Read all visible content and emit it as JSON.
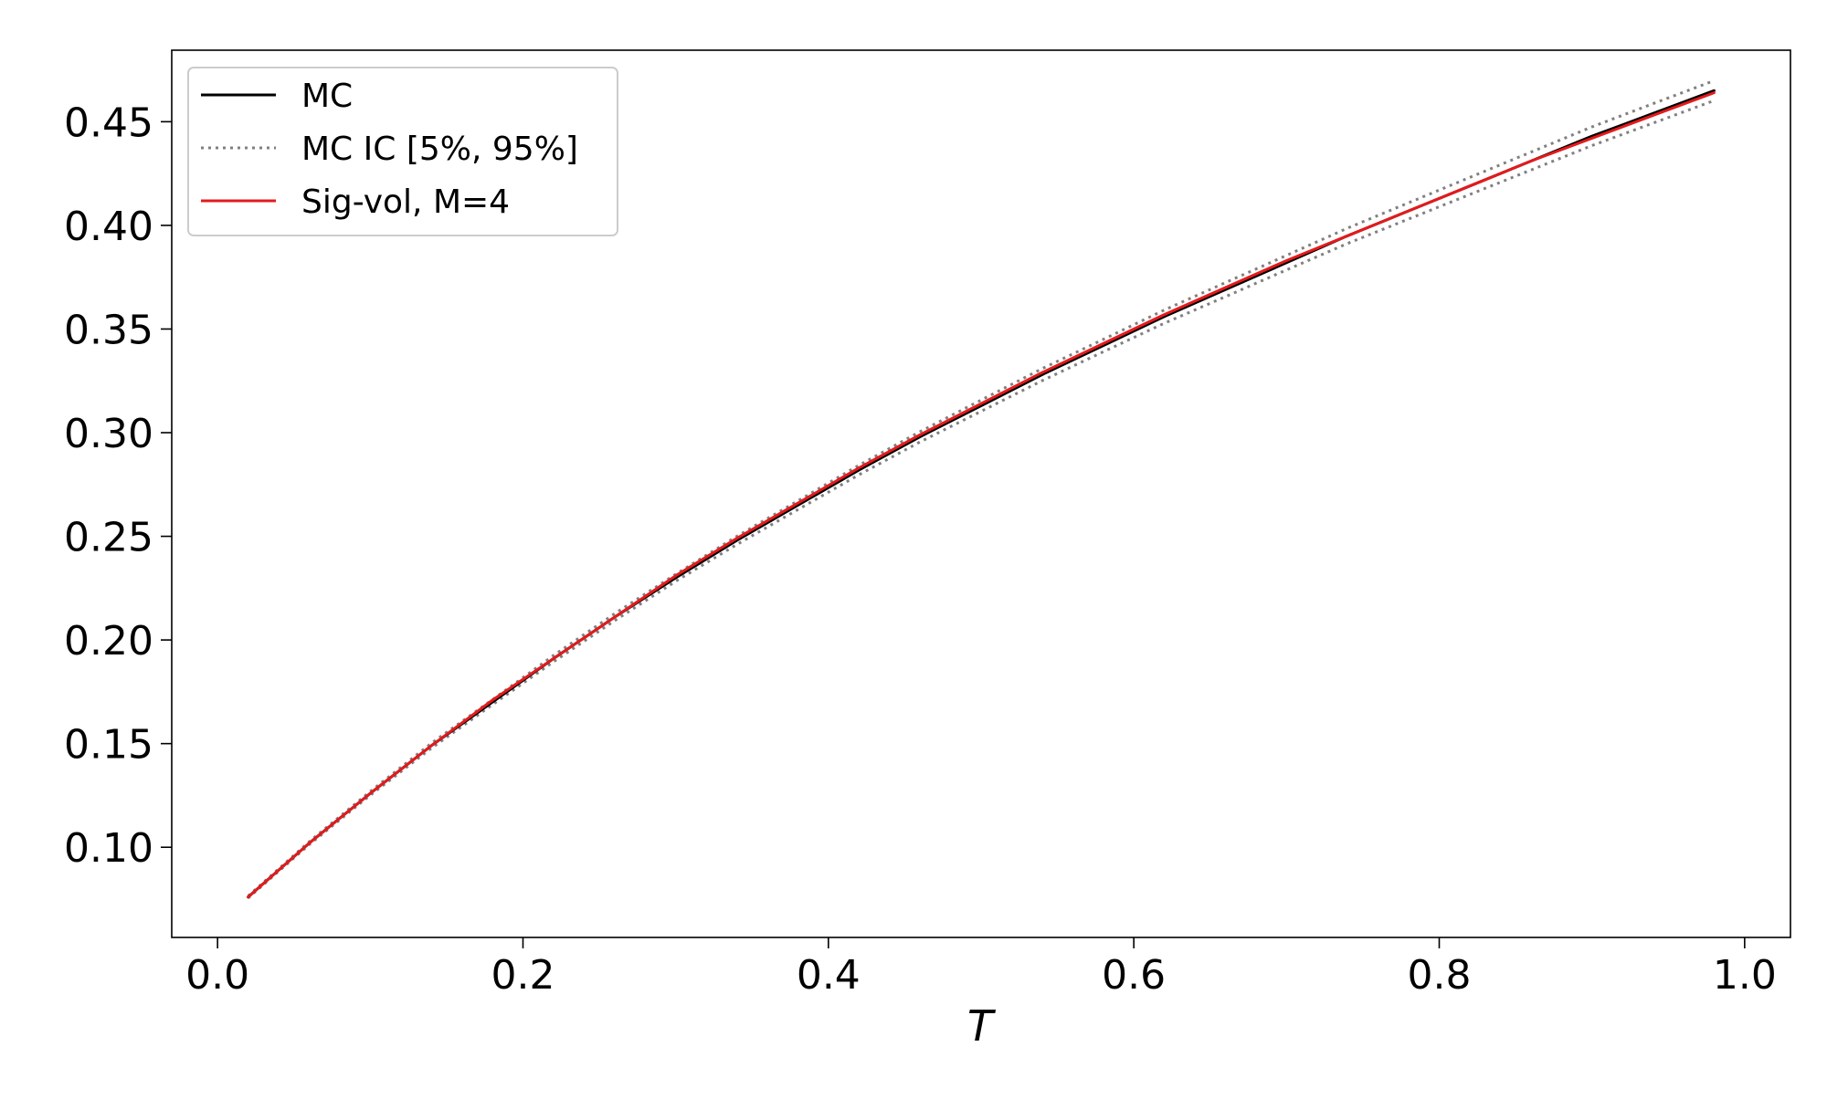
{
  "chart_data": {
    "type": "line",
    "title": "",
    "xlabel": "T",
    "ylabel": "",
    "xlim": [
      -0.03,
      1.03
    ],
    "ylim": [
      0.0565,
      0.4845
    ],
    "xticks": [
      0.0,
      0.2,
      0.4,
      0.6,
      0.8,
      1.0
    ],
    "xtick_labels": [
      "0.0",
      "0.2",
      "0.4",
      "0.6",
      "0.8",
      "1.0"
    ],
    "yticks": [
      0.1,
      0.15,
      0.2,
      0.25,
      0.3,
      0.35,
      0.4,
      0.45
    ],
    "ytick_labels": [
      "0.10",
      "0.15",
      "0.20",
      "0.25",
      "0.30",
      "0.35",
      "0.40",
      "0.45"
    ],
    "grid": false,
    "legend_position": "upper-left",
    "x": [
      0.02,
      0.06,
      0.1,
      0.14,
      0.18,
      0.22,
      0.26,
      0.3,
      0.34,
      0.38,
      0.42,
      0.46,
      0.5,
      0.54,
      0.58,
      0.62,
      0.66,
      0.7,
      0.74,
      0.78,
      0.82,
      0.86,
      0.9,
      0.94,
      0.98
    ],
    "series": [
      {
        "name": "MC",
        "color": "#000000",
        "style": "solid",
        "values": [
          0.076,
          0.102,
          0.126,
          0.149,
          0.17,
          0.191,
          0.211,
          0.23,
          0.248,
          0.265,
          0.282,
          0.298,
          0.313,
          0.328,
          0.342,
          0.356,
          0.369,
          0.382,
          0.395,
          0.407,
          0.419,
          0.431,
          0.443,
          0.454,
          0.465
        ]
      },
      {
        "name": "MC IC [5%, 95%]",
        "color": "#808080",
        "style": "dotted",
        "values": [
          0.0755,
          0.1013,
          0.1251,
          0.1478,
          0.1688,
          0.1895,
          0.2093,
          0.2283,
          0.246,
          0.2629,
          0.2797,
          0.2955,
          0.3103,
          0.3251,
          0.339,
          0.3528,
          0.3656,
          0.3785,
          0.3913,
          0.4031,
          0.4149,
          0.4267,
          0.4385,
          0.4493,
          0.4602
        ]
      },
      {
        "name": "",
        "color": "#808080",
        "style": "dotted",
        "values": [
          0.0765,
          0.1027,
          0.1269,
          0.1502,
          0.1712,
          0.1925,
          0.2127,
          0.2317,
          0.25,
          0.2671,
          0.2843,
          0.3005,
          0.3157,
          0.3309,
          0.345,
          0.3592,
          0.3724,
          0.3855,
          0.3987,
          0.4109,
          0.4231,
          0.4353,
          0.4475,
          0.4587,
          0.4698
        ]
      },
      {
        "name": "Sig-vol, M=4",
        "color": "#e41a1c",
        "style": "solid",
        "values": [
          0.076,
          0.102,
          0.126,
          0.149,
          0.171,
          0.191,
          0.211,
          0.231,
          0.249,
          0.266,
          0.283,
          0.299,
          0.314,
          0.329,
          0.343,
          0.357,
          0.37,
          0.383,
          0.395,
          0.407,
          0.419,
          0.431,
          0.442,
          0.453,
          0.464
        ]
      }
    ]
  }
}
